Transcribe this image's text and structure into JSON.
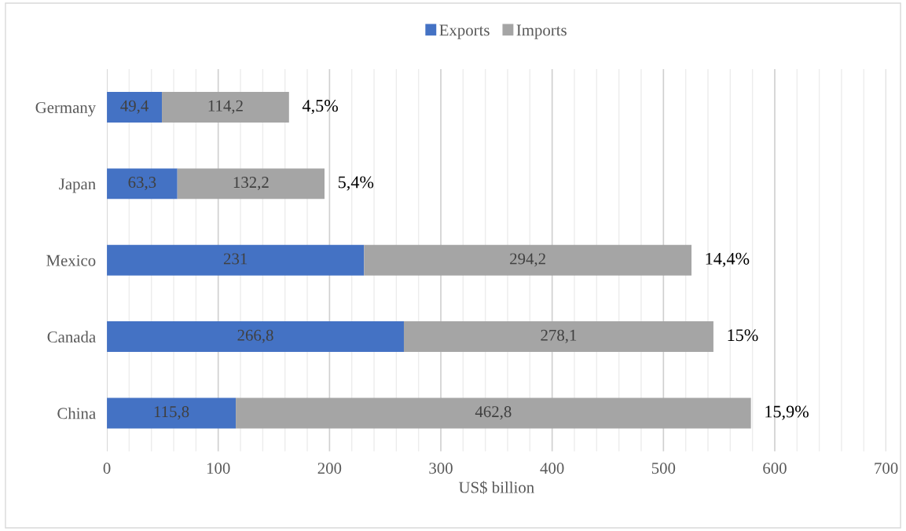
{
  "chart_data": {
    "type": "bar",
    "orientation": "horizontal",
    "stacked": true,
    "categories": [
      "Germany",
      "Japan",
      "Mexico",
      "Canada",
      "China"
    ],
    "series": [
      {
        "name": "Exports",
        "color": "#4472c4",
        "values": [
          49.4,
          63.3,
          231,
          266.8,
          115.8
        ],
        "value_labels": [
          "49,4",
          "63,3",
          "231",
          "266,8",
          "115,8"
        ]
      },
      {
        "name": "Imports",
        "color": "#a5a5a5",
        "values": [
          114.2,
          132.2,
          294.2,
          278.1,
          462.8
        ],
        "value_labels": [
          "114,2",
          "132,2",
          "294,2",
          "278,1",
          "462,8"
        ]
      }
    ],
    "annotations": [
      {
        "text": "4,5%",
        "x": 163.6,
        "y": "Germany"
      },
      {
        "text": "5,4%",
        "x": 195.5,
        "y": "Japan"
      },
      {
        "text": "14,4%",
        "x": 525.2,
        "y": "Mexico"
      },
      {
        "text": "15%",
        "x": 544.9,
        "y": "Canada"
      },
      {
        "text": "15,9%",
        "x": 578.6,
        "y": "China"
      }
    ],
    "xlabel": "US$ billion",
    "xlim": [
      0,
      700
    ],
    "xticks": [
      0,
      {
        "value": 20,
        "label": null
      },
      {
        "value": 40,
        "label": null
      },
      {
        "value": 60,
        "label": null
      },
      {
        "value": 80,
        "label": null
      },
      100,
      {
        "value": 120,
        "label": null
      },
      {
        "value": 140,
        "label": null
      },
      {
        "value": 160,
        "label": null
      },
      {
        "value": 180,
        "label": null
      },
      200,
      {
        "value": 220,
        "label": null
      },
      {
        "value": 240,
        "label": null
      },
      {
        "value": 260,
        "label": null
      },
      {
        "value": 280,
        "label": null
      },
      300,
      {
        "value": 320,
        "label": null
      },
      {
        "value": 340,
        "label": null
      },
      {
        "value": 360,
        "label": null
      },
      {
        "value": 380,
        "label": null
      },
      400,
      {
        "value": 420,
        "label": null
      },
      {
        "value": 440,
        "label": null
      },
      {
        "value": 460,
        "label": null
      },
      {
        "value": 480,
        "label": null
      },
      500,
      {
        "value": 520,
        "label": null
      },
      {
        "value": 540,
        "label": null
      },
      {
        "value": 560,
        "label": null
      },
      {
        "value": 580,
        "label": null
      },
      600,
      {
        "value": 620,
        "label": null
      },
      {
        "value": 640,
        "label": null
      },
      {
        "value": 660,
        "label": null
      },
      {
        "value": 680,
        "label": null
      },
      700
    ],
    "grid": "x",
    "legend": "top"
  }
}
